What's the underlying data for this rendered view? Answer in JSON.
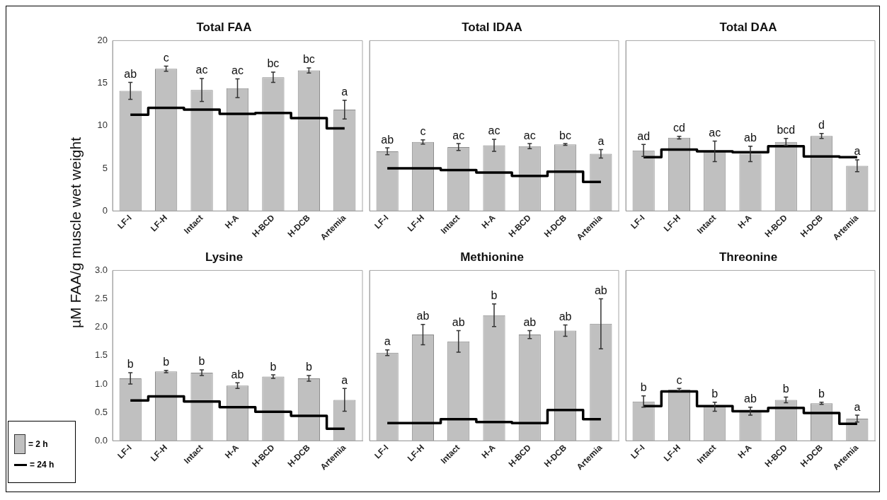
{
  "chart_data": [
    {
      "type": "bar",
      "title": "Total FAA",
      "ylabel": "µM FAA/g muscle wet weight",
      "categories": [
        "LF-I",
        "LF-H",
        "Intact",
        "H-A",
        "H-BCD",
        "H-DCB",
        "Artemia"
      ],
      "series": [
        {
          "color": "#c0c0c0",
          "values": [
            14.1,
            16.7,
            14.2,
            14.4,
            15.7,
            16.5,
            11.9
          ],
          "errors": [
            1.0,
            0.3,
            1.35,
            1.1,
            0.6,
            0.3,
            1.1
          ],
          "value_labels": [
            "ab",
            "c",
            "ac",
            "ac",
            "bc",
            "bc",
            "a"
          ]
        },
        {
          "type": "step",
          "color": "#000000",
          "values": [
            11.3,
            12.1,
            11.9,
            11.4,
            11.5,
            10.9,
            9.7
          ]
        }
      ],
      "ylim": [
        0,
        20
      ],
      "yticks": [
        0,
        5,
        10,
        15,
        20
      ],
      "grid": false
    },
    {
      "type": "bar",
      "title": "Total IDAA",
      "categories": [
        "LF-I",
        "LF-H",
        "Intact",
        "H-A",
        "H-BCD",
        "H-DCB",
        "Artemia"
      ],
      "series": [
        {
          "color": "#c0c0c0",
          "values": [
            7.0,
            8.1,
            7.5,
            7.7,
            7.6,
            7.8,
            6.7
          ],
          "errors": [
            0.4,
            0.25,
            0.4,
            0.7,
            0.3,
            0.1,
            0.5
          ],
          "value_labels": [
            "ab",
            "c",
            "ac",
            "ac",
            "ac",
            "bc",
            "a"
          ]
        },
        {
          "type": "step",
          "color": "#000000",
          "values": [
            5.0,
            5.0,
            4.8,
            4.5,
            4.1,
            4.6,
            3.4
          ]
        }
      ],
      "ylim": [
        0,
        20
      ],
      "yticks": [
        {
          "value": 0,
          "label": null
        },
        {
          "value": 5,
          "label": null
        },
        {
          "value": 10,
          "label": null
        },
        {
          "value": 15,
          "label": null
        },
        {
          "value": 20,
          "label": null
        }
      ],
      "grid": false,
      "tick_labels": "x"
    },
    {
      "type": "bar",
      "title": "Total DAA",
      "categories": [
        "LF-I",
        "LF-H",
        "Intact",
        "H-A",
        "H-BCD",
        "H-DCB",
        "Artemia"
      ],
      "series": [
        {
          "color": "#c0c0c0",
          "values": [
            7.1,
            8.6,
            7.0,
            6.7,
            8.1,
            8.8,
            5.3
          ],
          "errors": [
            0.7,
            0.15,
            1.2,
            0.9,
            0.4,
            0.3,
            0.7
          ],
          "value_labels": [
            "ad",
            "cd",
            "ac",
            "ab",
            "bcd",
            "d",
            "a"
          ]
        },
        {
          "type": "step",
          "color": "#000000",
          "values": [
            6.3,
            7.2,
            7.0,
            6.9,
            7.6,
            6.4,
            6.3
          ]
        }
      ],
      "ylim": [
        0,
        20
      ],
      "yticks": [
        {
          "value": 0,
          "label": null
        },
        {
          "value": 5,
          "label": null
        },
        {
          "value": 10,
          "label": null
        },
        {
          "value": 15,
          "label": null
        },
        {
          "value": 20,
          "label": null
        }
      ],
      "grid": false,
      "tick_labels": "x"
    },
    {
      "type": "bar",
      "title": "Lysine",
      "categories": [
        "LF-I",
        "LF-H",
        "Intact",
        "H-A",
        "H-BCD",
        "H-DCB",
        "Artemia"
      ],
      "series": [
        {
          "name": "= 2 h",
          "color": "#c0c0c0",
          "values": [
            1.1,
            1.22,
            1.2,
            0.97,
            1.13,
            1.1,
            0.72
          ],
          "errors": [
            0.1,
            0.02,
            0.05,
            0.05,
            0.03,
            0.05,
            0.2
          ],
          "value_labels": [
            "b",
            "b",
            "b",
            "ab",
            "b",
            "b",
            "a"
          ]
        },
        {
          "name": "= 24 h",
          "type": "step",
          "color": "#000000",
          "values": [
            0.71,
            0.78,
            0.69,
            0.59,
            0.51,
            0.44,
            0.21
          ]
        }
      ],
      "ylim": [
        0,
        3
      ],
      "yticks": [
        {
          "value": 0,
          "label": "0.0"
        },
        {
          "value": 0.5,
          "label": "0.5"
        },
        {
          "value": 1,
          "label": "1.0"
        },
        {
          "value": 1.5,
          "label": "1.5"
        },
        {
          "value": 2,
          "label": "2.0"
        },
        {
          "value": 2.5,
          "label": "2.5"
        },
        {
          "value": 3,
          "label": "3.0"
        }
      ],
      "grid": false,
      "legend": "bottom left"
    },
    {
      "type": "bar",
      "title": "Methionine",
      "categories": [
        "LF-I",
        "LF-H",
        "Intact",
        "H-A",
        "H-BCD",
        "H-DCB",
        "Artemia"
      ],
      "series": [
        {
          "color": "#c0c0c0",
          "values": [
            1.55,
            1.87,
            1.75,
            2.21,
            1.87,
            1.94,
            2.06
          ],
          "errors": [
            0.05,
            0.18,
            0.19,
            0.2,
            0.07,
            0.1,
            0.44
          ],
          "value_labels": [
            "a",
            "ab",
            "ab",
            "b",
            "ab",
            "ab",
            "ab"
          ]
        },
        {
          "type": "step",
          "color": "#000000",
          "values": [
            0.31,
            0.31,
            0.38,
            0.33,
            0.31,
            0.54,
            0.38
          ]
        }
      ],
      "ylim": [
        0,
        3
      ],
      "yticks": [
        {
          "value": 0,
          "label": null
        },
        {
          "value": 0.5,
          "label": null
        },
        {
          "value": 1,
          "label": null
        },
        {
          "value": 1.5,
          "label": null
        },
        {
          "value": 2,
          "label": null
        },
        {
          "value": 2.5,
          "label": null
        },
        {
          "value": 3,
          "label": null
        }
      ],
      "grid": false,
      "tick_labels": "x"
    },
    {
      "type": "bar",
      "title": "Threonine",
      "categories": [
        "LF-I",
        "LF-H",
        "Intact",
        "H-A",
        "H-BCD",
        "H-DCB",
        "Artemia"
      ],
      "series": [
        {
          "color": "#c0c0c0",
          "values": [
            0.69,
            0.9,
            0.6,
            0.52,
            0.72,
            0.66,
            0.39
          ],
          "errors": [
            0.1,
            0.02,
            0.08,
            0.07,
            0.05,
            0.02,
            0.06
          ],
          "value_labels": [
            "b",
            "c",
            "b",
            "ab",
            "b",
            "b",
            "a"
          ]
        },
        {
          "type": "step",
          "color": "#000000",
          "values": [
            0.61,
            0.87,
            0.61,
            0.52,
            0.58,
            0.49,
            0.3
          ]
        }
      ],
      "ylim": [
        0,
        3
      ],
      "yticks": [
        {
          "value": 0,
          "label": null
        },
        {
          "value": 0.5,
          "label": null
        },
        {
          "value": 1,
          "label": null
        },
        {
          "value": 1.5,
          "label": null
        },
        {
          "value": 2,
          "label": null
        },
        {
          "value": 2.5,
          "label": null
        },
        {
          "value": 3,
          "label": null
        }
      ],
      "grid": false,
      "tick_labels": "x"
    }
  ]
}
